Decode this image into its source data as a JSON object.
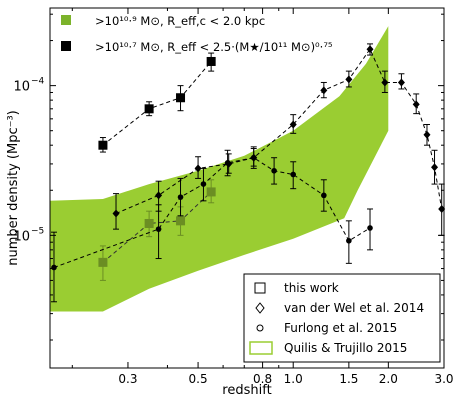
{
  "chart_data": {
    "type": "scatter",
    "xlabel": "redshift",
    "ylabel": "number density (Mpc⁻³)",
    "xscale": "log",
    "yscale": "log",
    "xlim": [
      0.17,
      3.0
    ],
    "ylim": [
      1.3e-06,
      0.00033
    ],
    "x_ticks": [
      {
        "value": 0.3,
        "label": "0.3"
      },
      {
        "value": 0.5,
        "label": "0.5"
      },
      {
        "value": 0.8,
        "label": "0.8"
      },
      {
        "value": 1.0,
        "label": "1.0"
      },
      {
        "value": 1.5,
        "label": "1.5"
      },
      {
        "value": 2.0,
        "label": "2.0"
      },
      {
        "value": 3.0,
        "label": "3.0"
      }
    ],
    "y_ticks": [
      {
        "value": 1e-05,
        "base": "10",
        "exp": "−5"
      },
      {
        "value": 0.0001,
        "base": "10",
        "exp": "−4"
      }
    ],
    "top_legend": [
      {
        "marker": "square",
        "color": "#7cb32b",
        "text": ">10¹⁰·⁹ M⊙, R_eff,c < 2.0 kpc"
      },
      {
        "marker": "square",
        "color": "#000000",
        "text": ">10¹⁰·⁷ M⊙, R_eff < 2.5·(M★/10¹¹ M⊙)⁰·⁷⁵"
      }
    ],
    "bottom_legend": [
      {
        "marker": "open-square",
        "text": "this work"
      },
      {
        "marker": "open-diamond",
        "text": "van der Wel et al. 2014"
      },
      {
        "marker": "open-circle",
        "text": "Furlong et al. 2015"
      },
      {
        "marker": "band",
        "color": "#9acd32",
        "text": "Quilis & Trujillo 2015"
      }
    ],
    "band": {
      "color": "#9acd32",
      "upper": [
        [
          0.17,
          1.7e-05
        ],
        [
          0.25,
          1.75e-05
        ],
        [
          0.35,
          2.2e-05
        ],
        [
          0.5,
          2.7e-05
        ],
        [
          0.7,
          3.4e-05
        ],
        [
          1.0,
          5e-05
        ],
        [
          1.4,
          8.5e-05
        ],
        [
          1.7,
          0.00014
        ],
        [
          2.0,
          0.00025
        ]
      ],
      "lower": [
        [
          2.0,
          5e-05
        ],
        [
          1.6,
          2e-05
        ],
        [
          1.45,
          1.3e-05
        ],
        [
          1.0,
          9.5e-06
        ],
        [
          0.7,
          7.4e-06
        ],
        [
          0.5,
          5.8e-06
        ],
        [
          0.35,
          4.4e-06
        ],
        [
          0.25,
          3.1e-06
        ],
        [
          0.17,
          3.1e-06
        ]
      ]
    },
    "series": [
      {
        "marker": "square-filled",
        "color": "#000000",
        "line": "dashed",
        "points": [
          {
            "x": 0.25,
            "y": 4e-05,
            "lo": 3.6e-05,
            "hi": 4.5e-05
          },
          {
            "x": 0.35,
            "y": 7e-05,
            "lo": 6.3e-05,
            "hi": 7.8e-05
          },
          {
            "x": 0.44,
            "y": 8.3e-05,
            "lo": 6.8e-05,
            "hi": 0.0001
          },
          {
            "x": 0.55,
            "y": 0.000145,
            "lo": 0.000125,
            "hi": 0.000165
          }
        ]
      },
      {
        "marker": "square-filled",
        "color": "#6b8e23",
        "line": "dashed",
        "points": [
          {
            "x": 0.25,
            "y": 6.6e-06,
            "lo": 5e-06,
            "hi": 8.5e-06
          },
          {
            "x": 0.35,
            "y": 1.2e-05,
            "lo": 9.8e-06,
            "hi": 1.45e-05
          },
          {
            "x": 0.44,
            "y": 1.25e-05,
            "lo": 1e-05,
            "hi": 1.55e-05
          },
          {
            "x": 0.55,
            "y": 1.95e-05,
            "lo": 1.65e-05,
            "hi": 2.35e-05
          }
        ]
      },
      {
        "marker": "diamond",
        "color": "#000000",
        "line": "dashed",
        "points": [
          {
            "x": 0.275,
            "y": 1.4e-05,
            "lo": 1.1e-05,
            "hi": 1.9e-05
          },
          {
            "x": 0.375,
            "y": 1.85e-05,
            "lo": 1.45e-05,
            "hi": 2.3e-05
          },
          {
            "x": 0.5,
            "y": 2.8e-05,
            "lo": 2.4e-05,
            "hi": 3.35e-05
          },
          {
            "x": 0.625,
            "y": 3e-05,
            "lo": 2.6e-05,
            "hi": 3.5e-05
          },
          {
            "x": 0.75,
            "y": 3.3e-05,
            "lo": 2.9e-05,
            "hi": 3.8e-05
          },
          {
            "x": 1.0,
            "y": 5.5e-05,
            "lo": 4.8e-05,
            "hi": 6.4e-05
          },
          {
            "x": 1.25,
            "y": 9.3e-05,
            "lo": 8.3e-05,
            "hi": 0.000105
          },
          {
            "x": 1.5,
            "y": 0.00011,
            "lo": 9.8e-05,
            "hi": 0.000125
          },
          {
            "x": 1.75,
            "y": 0.000175,
            "lo": 0.00016,
            "hi": 0.00019
          },
          {
            "x": 1.95,
            "y": 0.000105,
            "lo": 9e-05,
            "hi": 0.000125
          },
          {
            "x": 2.2,
            "y": 0.000105,
            "lo": 9.5e-05,
            "hi": 0.00012
          },
          {
            "x": 2.45,
            "y": 7.5e-05,
            "lo": 6.5e-05,
            "hi": 8.8e-05
          },
          {
            "x": 2.65,
            "y": 4.7e-05,
            "lo": 4e-05,
            "hi": 5.5e-05
          },
          {
            "x": 2.8,
            "y": 2.85e-05,
            "lo": 2.2e-05,
            "hi": 3.7e-05
          },
          {
            "x": 2.95,
            "y": 1.5e-05,
            "lo": 1e-05,
            "hi": 2.2e-05
          }
        ]
      },
      {
        "marker": "circle",
        "color": "#000000",
        "line": "dashed",
        "points": [
          {
            "x": 0.175,
            "y": 6.1e-06,
            "lo": 3.6e-06,
            "hi": 1.05e-05
          },
          {
            "x": 0.375,
            "y": 1.1e-05,
            "lo": 7e-06,
            "hi": 1.6e-05
          },
          {
            "x": 0.44,
            "y": 1.8e-05,
            "lo": 1.35e-05,
            "hi": 2.4e-05
          },
          {
            "x": 0.52,
            "y": 2.2e-05,
            "lo": 1.7e-05,
            "hi": 2.8e-05
          },
          {
            "x": 0.62,
            "y": 3.05e-05,
            "lo": 2.5e-05,
            "hi": 3.7e-05
          },
          {
            "x": 0.75,
            "y": 3.3e-05,
            "lo": 2.8e-05,
            "hi": 3.9e-05
          },
          {
            "x": 0.87,
            "y": 2.7e-05,
            "lo": 2.2e-05,
            "hi": 3.3e-05
          },
          {
            "x": 1.0,
            "y": 2.55e-05,
            "lo": 2.05e-05,
            "hi": 3.1e-05
          },
          {
            "x": 1.25,
            "y": 1.85e-05,
            "lo": 1.45e-05,
            "hi": 2.35e-05
          },
          {
            "x": 1.5,
            "y": 9.2e-06,
            "lo": 6.5e-06,
            "hi": 1.25e-05
          },
          {
            "x": 1.75,
            "y": 1.12e-05,
            "lo": 8e-06,
            "hi": 1.5e-05
          }
        ]
      }
    ]
  }
}
